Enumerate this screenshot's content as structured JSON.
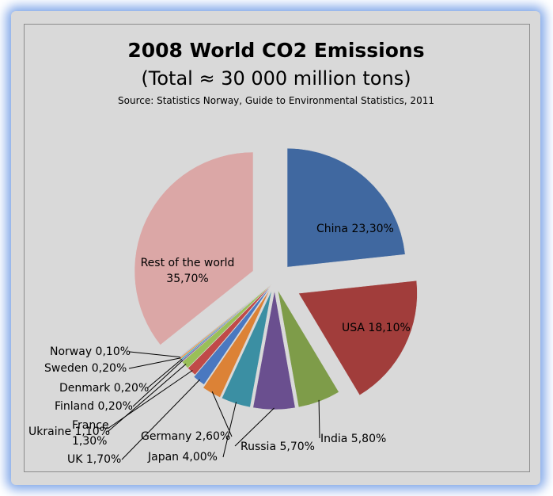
{
  "chart_data": {
    "type": "pie",
    "title": "2008 World CO2 Emissions",
    "subtitle": "(Total ≈ 30 000 million tons)",
    "source": "Source: Statistics Norway, Guide to Environmental Statistics, 2011",
    "slices": [
      {
        "name": "China",
        "value": 23.3,
        "label": "China 23,30%",
        "color": "#4068a0"
      },
      {
        "name": "USA",
        "value": 18.1,
        "label": "USA 18,10%",
        "color": "#a13d3b"
      },
      {
        "name": "India",
        "value": 5.8,
        "label": "India 5,80%",
        "color": "#7e9c49"
      },
      {
        "name": "Russia",
        "value": 5.7,
        "label": "Russia 5,70%",
        "color": "#6a4f8f"
      },
      {
        "name": "Japan",
        "value": 4.0,
        "label": "Japan  4,00%",
        "color": "#3b8fa3"
      },
      {
        "name": "Germany",
        "value": 2.6,
        "label": "Germany 2,60%",
        "color": "#dc8236"
      },
      {
        "name": "UK",
        "value": 1.7,
        "label": "UK 1,70%",
        "color": "#4a78c0"
      },
      {
        "name": "France",
        "value": 1.3,
        "label": "France 1,30%",
        "color": "#c04a48"
      },
      {
        "name": "Ukraine",
        "value": 1.1,
        "label": "Ukraine 1,10%",
        "color": "#9abf58"
      },
      {
        "name": "Finland",
        "value": 0.2,
        "label": "Finland 0,20%",
        "color": "#7e62a8"
      },
      {
        "name": "Denmark",
        "value": 0.2,
        "label": "Denmark 0,20%",
        "color": "#46aac8"
      },
      {
        "name": "Sweden",
        "value": 0.2,
        "label": "Sweden 0,20%",
        "color": "#f09a46"
      },
      {
        "name": "Norway",
        "value": 0.1,
        "label": "Norway 0,10%",
        "color": "#93aad8"
      },
      {
        "name": "Rest of the world",
        "value": 35.7,
        "label": "Rest of the world 35,70%",
        "color": "#dba7a6"
      }
    ]
  }
}
